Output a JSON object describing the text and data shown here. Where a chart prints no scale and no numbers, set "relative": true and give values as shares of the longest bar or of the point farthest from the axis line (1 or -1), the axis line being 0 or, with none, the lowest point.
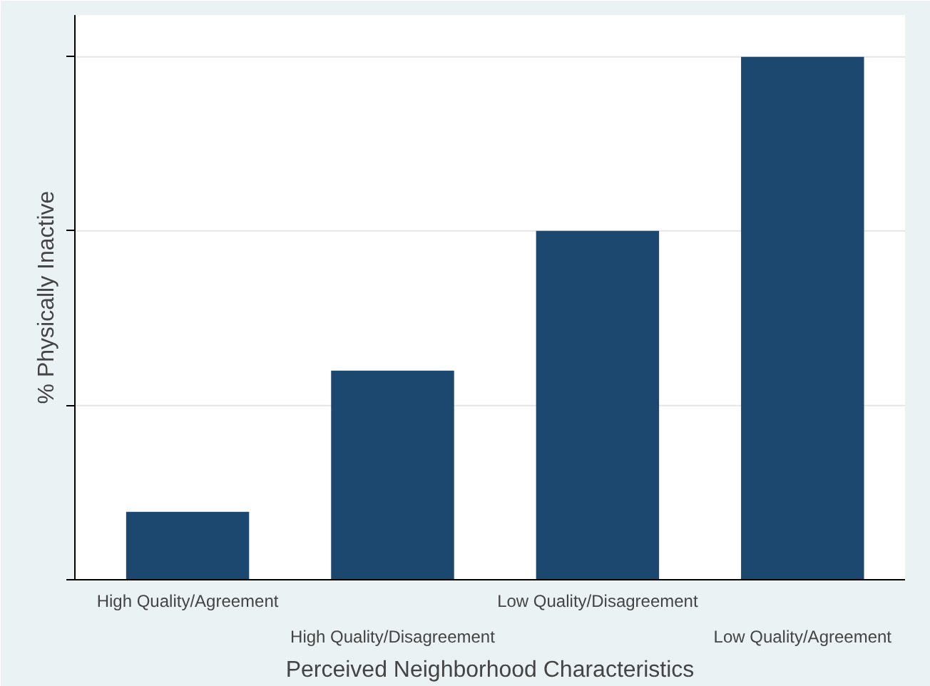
{
  "chart_data": {
    "type": "bar",
    "relative": true,
    "xlabel": "Perceived Neighborhood Characteristics",
    "ylabel": "% Physically Inactive",
    "categories": [
      "High Quality/Agreement",
      "High Quality/Disagreement",
      "Low Quality/Disagreement",
      "Low Quality/Agreement"
    ],
    "values": [
      0.13,
      0.4,
      0.667,
      1
    ],
    "color": "#1c476f",
    "ref_lines": [
      {
        "axis": "y",
        "value": 0.333,
        "color": "#e5e5e5"
      },
      {
        "axis": "y",
        "value": 0.667,
        "color": "#e5e5e5"
      },
      {
        "axis": "y",
        "value": 1,
        "color": "#e5e5e5"
      }
    ]
  }
}
